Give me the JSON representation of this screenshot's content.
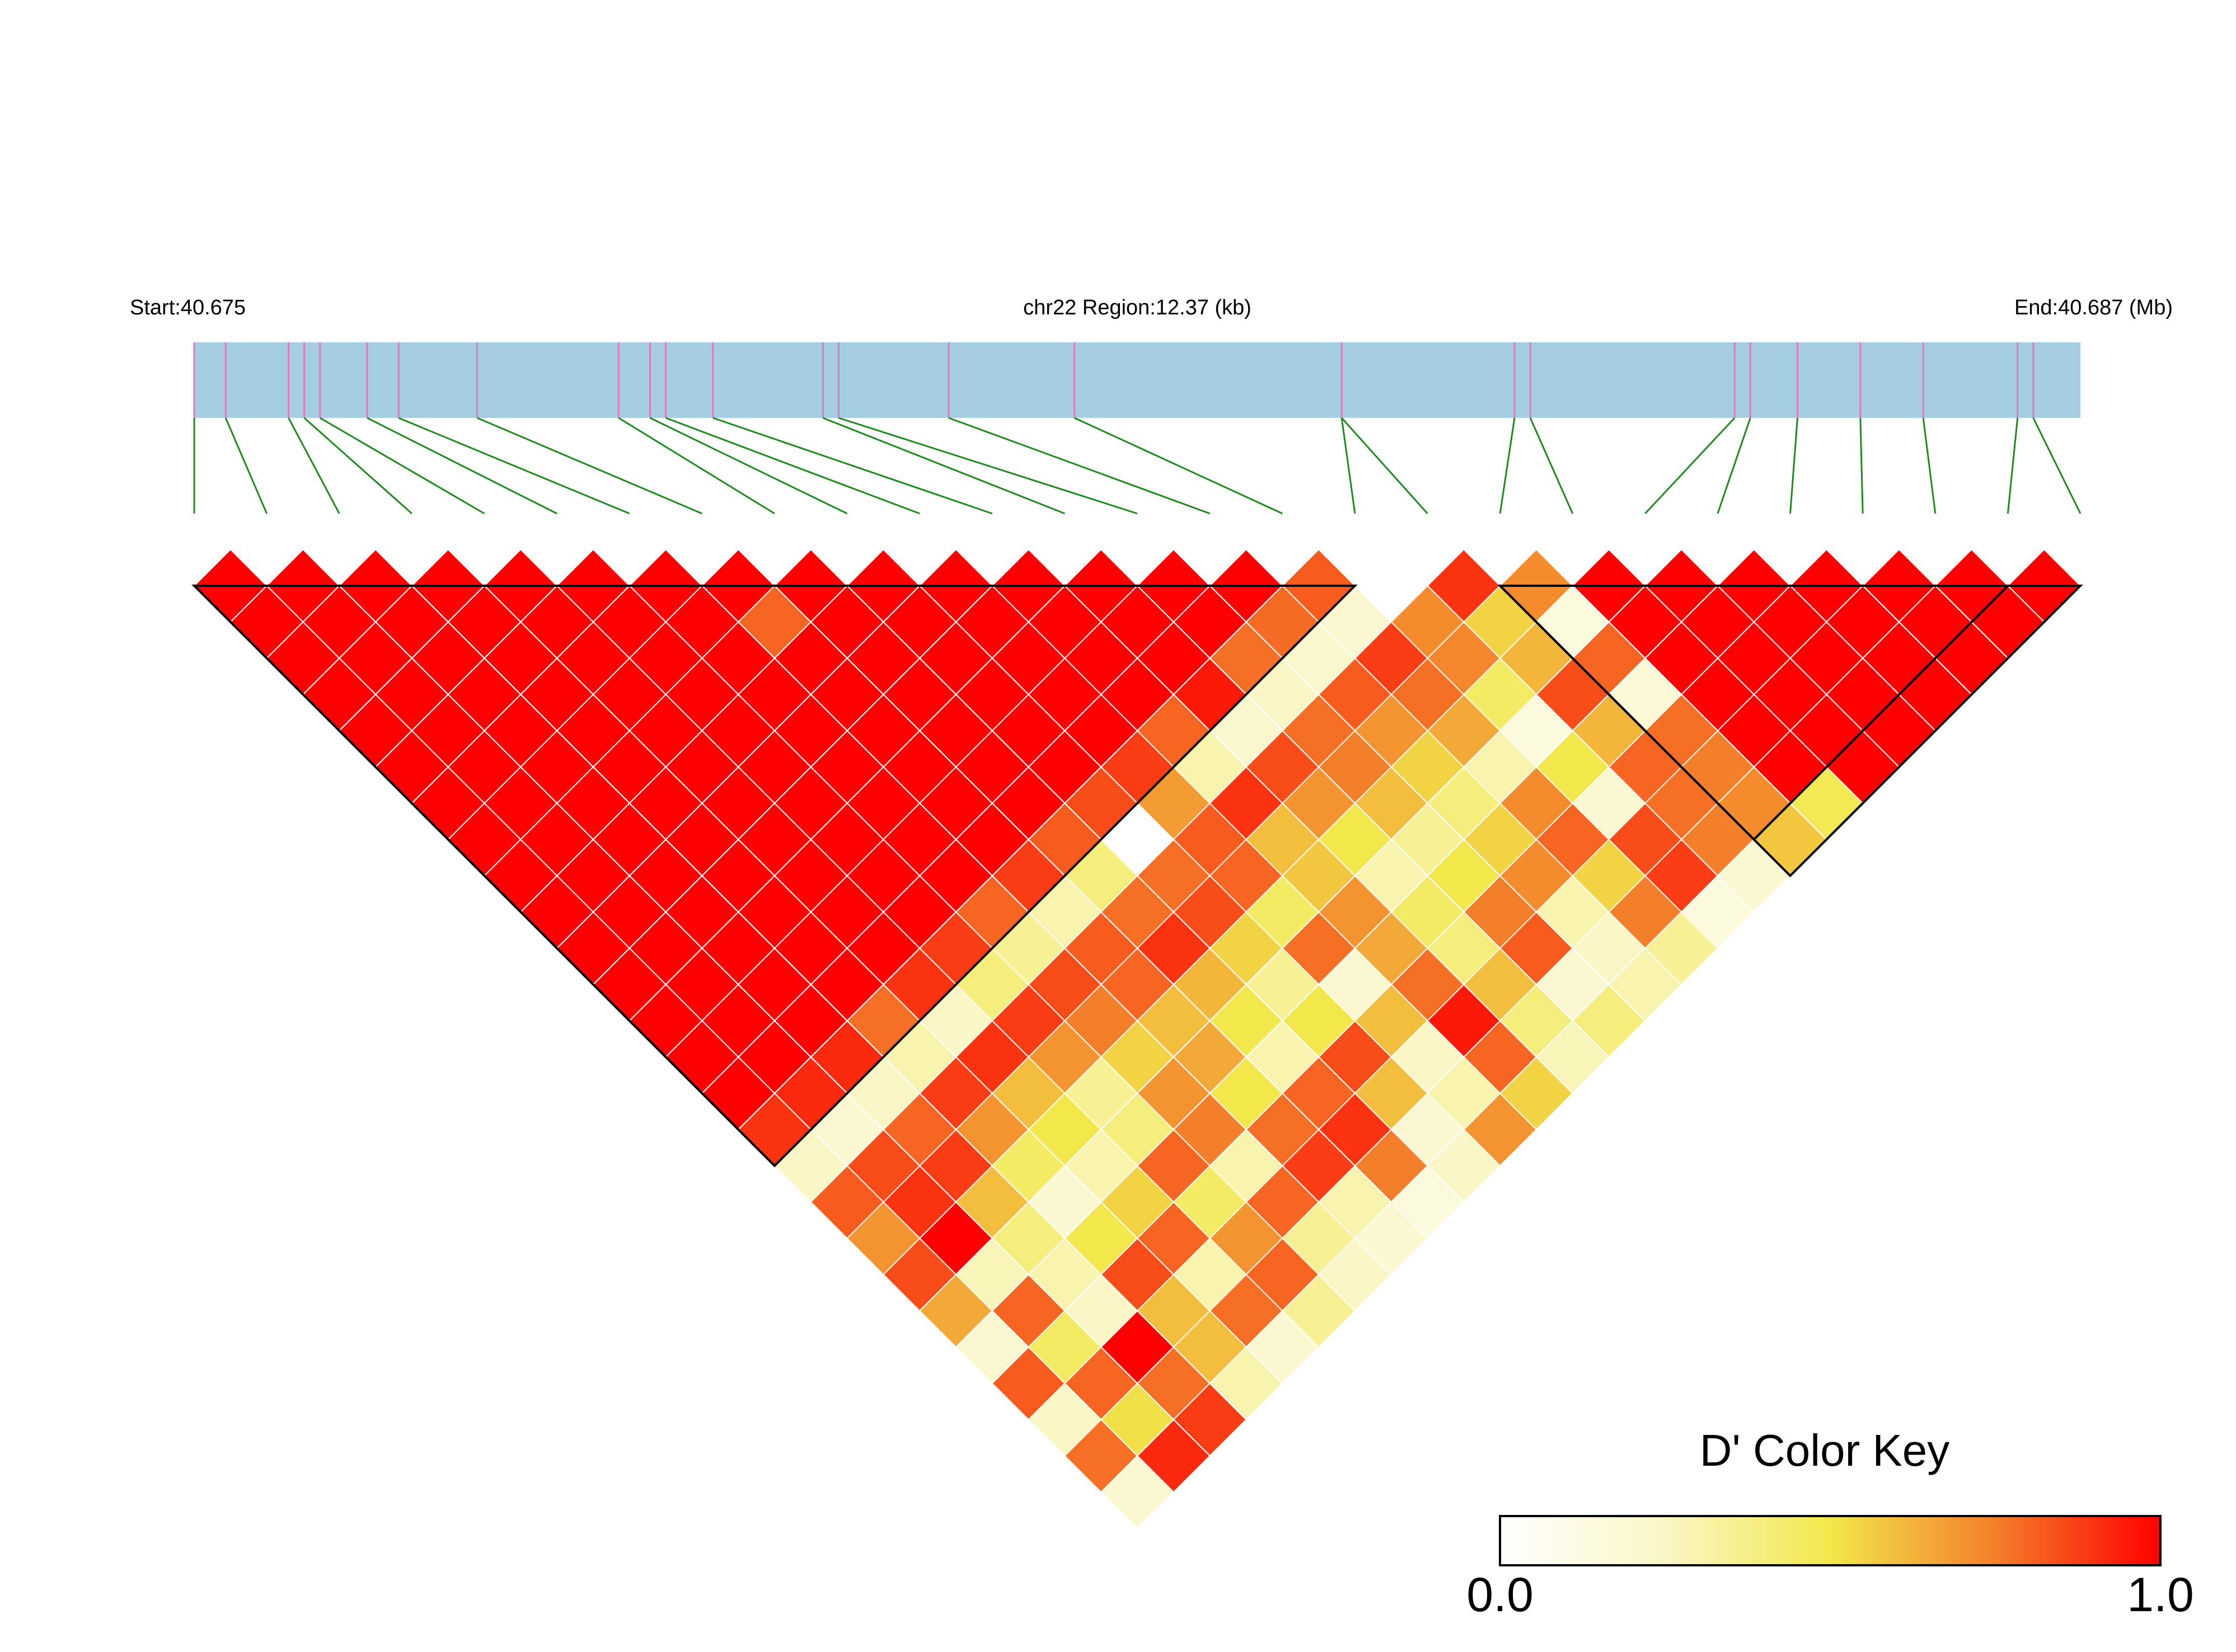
{
  "header": {
    "start_label": "Start:40.675",
    "region_label": "chr22 Region:12.37 (kb)",
    "end_label": "End:40.687 (Mb)"
  },
  "colors": {
    "region_bar": "#a6cee3",
    "snp_tick": "#e377c2",
    "connector": "#1f8b1f",
    "block_outline": "#000000",
    "cell_border": "#ffffff",
    "key_low": "#ffffff",
    "key_mid": "#f2e84b",
    "key_high": "#ff0000"
  },
  "chart_data": {
    "type": "heatmap",
    "subtype": "linkage-disequilibrium triangle",
    "region": {
      "chromosome": "chr22",
      "start_mb": 40.675,
      "end_mb": 40.687,
      "length_kb": 12.37
    },
    "snp_count": 27,
    "snp_positions_mb": [
      40.675,
      40.6752,
      40.6756,
      40.6757,
      40.6758,
      40.6761,
      40.6763,
      40.6768,
      40.6777,
      40.6779,
      40.678,
      40.6783,
      40.679,
      40.6791,
      40.6798,
      40.6806,
      40.6823,
      40.6823,
      40.6834,
      40.6835,
      40.6848,
      40.6849,
      40.6852,
      40.6856,
      40.686,
      40.6866,
      40.6867
    ],
    "blocks": [
      {
        "first_snp": 1,
        "last_snp": 17
      },
      {
        "first_snp": 19,
        "last_snp": 26
      },
      {
        "first_snp": 19,
        "last_snp": 27
      }
    ],
    "dprime_rows": [
      [
        1.0,
        1.0,
        1.0,
        1.0,
        1.0,
        1.0,
        1.0,
        1.0,
        1.0,
        1.0,
        1.0,
        1.0,
        1.0,
        1.0,
        1.0,
        0.82,
        0.0,
        0.9,
        0.72,
        1.0,
        1.0,
        1.0,
        1.0,
        1.0,
        1.0,
        1.0
      ],
      [
        1.0,
        1.0,
        1.0,
        1.0,
        1.0,
        1.0,
        1.0,
        0.8,
        1.0,
        1.0,
        1.0,
        1.0,
        1.0,
        1.0,
        0.79,
        0.2,
        0.72,
        0.55,
        0.15,
        1.0,
        1.0,
        1.0,
        1.0,
        1.0,
        1.0
      ],
      [
        1.0,
        1.0,
        1.0,
        1.0,
        1.0,
        1.0,
        1.0,
        1.0,
        1.0,
        1.0,
        1.0,
        1.0,
        1.0,
        0.78,
        0.22,
        0.88,
        0.73,
        0.62,
        0.8,
        1.0,
        1.0,
        1.0,
        1.0,
        1.0
      ],
      [
        1.0,
        1.0,
        1.0,
        1.0,
        1.0,
        1.0,
        1.0,
        1.0,
        1.0,
        1.0,
        1.0,
        1.0,
        0.95,
        0.25,
        0.82,
        0.78,
        0.45,
        0.85,
        0.18,
        1.0,
        1.0,
        1.0,
        1.0
      ],
      [
        1.0,
        1.0,
        1.0,
        1.0,
        1.0,
        1.0,
        1.0,
        1.0,
        1.0,
        1.0,
        1.0,
        0.8,
        0.22,
        0.78,
        0.7,
        0.65,
        0.15,
        0.62,
        0.78,
        1.0,
        1.0,
        1.0
      ],
      [
        1.0,
        1.0,
        1.0,
        1.0,
        1.0,
        1.0,
        1.0,
        1.0,
        1.0,
        1.0,
        0.88,
        0.3,
        0.85,
        0.75,
        0.55,
        0.3,
        0.5,
        0.8,
        0.75,
        1.0,
        1.0
      ],
      [
        1.0,
        1.0,
        1.0,
        1.0,
        1.0,
        1.0,
        1.0,
        1.0,
        1.0,
        0.85,
        0.68,
        0.9,
        0.7,
        0.6,
        0.4,
        0.72,
        0.2,
        0.78,
        0.72,
        0.48
      ],
      [
        1.0,
        1.0,
        1.0,
        1.0,
        1.0,
        1.0,
        1.0,
        1.0,
        0.82,
        0.0,
        0.82,
        0.6,
        0.5,
        0.35,
        0.55,
        0.8,
        0.85,
        0.75,
        0.58
      ],
      [
        1.0,
        1.0,
        1.0,
        1.0,
        1.0,
        1.0,
        1.0,
        0.88,
        0.4,
        0.78,
        0.8,
        0.58,
        0.3,
        0.5,
        0.72,
        0.55,
        0.88,
        0.2
      ],
      [
        1.0,
        1.0,
        1.0,
        1.0,
        1.0,
        1.0,
        0.8,
        0.3,
        0.78,
        0.85,
        0.45,
        0.7,
        0.45,
        0.75,
        0.3,
        0.75,
        0.15
      ],
      [
        1.0,
        1.0,
        1.0,
        1.0,
        1.0,
        0.88,
        0.35,
        0.82,
        0.9,
        0.55,
        0.78,
        0.65,
        0.4,
        0.82,
        0.25,
        0.35
      ],
      [
        1.0,
        1.0,
        1.0,
        1.0,
        0.9,
        0.4,
        0.85,
        0.8,
        0.62,
        0.35,
        0.2,
        0.78,
        0.6,
        0.2,
        0.3
      ],
      [
        1.0,
        1.0,
        1.0,
        0.78,
        0.25,
        0.88,
        0.75,
        0.6,
        0.5,
        0.5,
        0.6,
        0.95,
        0.4,
        0.4
      ],
      [
        1.0,
        1.0,
        0.92,
        0.3,
        0.9,
        0.7,
        0.55,
        0.65,
        0.3,
        0.85,
        0.25,
        0.8,
        0.28
      ],
      [
        1.0,
        0.92,
        0.25,
        0.88,
        0.6,
        0.35,
        0.7,
        0.5,
        0.8,
        0.6,
        0.3,
        0.55
      ],
      [
        0.9,
        0.2,
        0.8,
        0.7,
        0.5,
        0.4,
        0.75,
        0.78,
        0.9,
        0.2,
        0.7
      ],
      [
        0.25,
        0.85,
        0.88,
        0.45,
        0.3,
        0.8,
        0.3,
        0.88,
        0.75,
        0.25
      ],
      [
        0.82,
        0.9,
        0.6,
        0.2,
        0.55,
        0.45,
        0.8,
        0.3,
        0.15
      ],
      [
        0.7,
        1.0,
        0.4,
        0.5,
        0.8,
        0.7,
        0.35,
        0.2
      ],
      [
        0.85,
        0.28,
        0.3,
        0.85,
        0.3,
        0.8,
        0.25
      ],
      [
        0.65,
        0.8,
        0.25,
        0.6,
        0.78,
        0.35
      ],
      [
        0.2,
        0.45,
        1.0,
        0.6,
        0.2
      ],
      [
        0.82,
        0.8,
        0.78,
        0.3
      ],
      [
        0.25,
        0.52,
        0.88
      ],
      [
        0.78,
        0.92
      ],
      [
        0.2
      ]
    ],
    "color_key": {
      "title": "D' Color Key",
      "min_label": "0.0",
      "max_label": "1.0",
      "range": [
        0.0,
        1.0
      ]
    }
  }
}
